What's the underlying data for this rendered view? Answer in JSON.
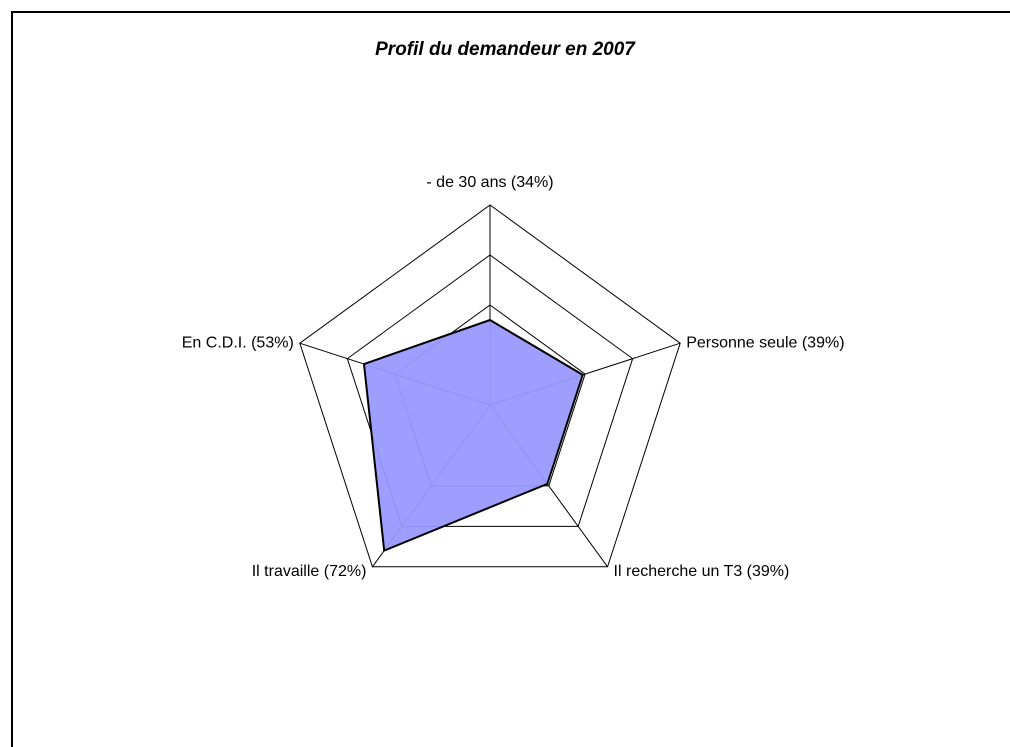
{
  "chart_data": {
    "type": "radar",
    "title": "Profil du demandeur en 2007",
    "categories": [
      "- de 30 ans (34%)",
      "Personne seule (39%)",
      "Il recherche un T3 (39%)",
      "Il travaille (72%)",
      "En C.D.I. (53%)"
    ],
    "values": [
      34,
      39,
      39,
      72,
      53
    ],
    "color": "#9999ff",
    "rlim": [
      0,
      80
    ],
    "rticks": [
      40,
      60,
      80
    ],
    "grid": true
  }
}
